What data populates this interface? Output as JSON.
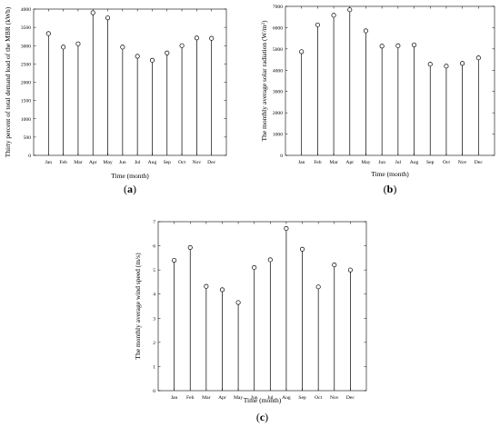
{
  "chart_data": [
    {
      "type": "stem",
      "panel_label": "a",
      "categories": [
        "Jan",
        "Feb",
        "Mar",
        "Apr",
        "May",
        "Jun",
        "Jul",
        "Aug",
        "Sep",
        "Oct",
        "Nov",
        "Dec"
      ],
      "values": [
        3330,
        2960,
        3050,
        3900,
        3760,
        2960,
        2710,
        2600,
        2800,
        3000,
        3210,
        3200
      ],
      "ylim": [
        0,
        4000
      ],
      "yticks": [
        0,
        500,
        1000,
        1500,
        2000,
        2500,
        3000,
        3500,
        4000
      ],
      "xlabel": "Time (month)",
      "ylabel": "Thirty percent of total demand load of the MBR (kWh)"
    },
    {
      "type": "stem",
      "panel_label": "b",
      "categories": [
        "Jan",
        "Feb",
        "Mar",
        "Apr",
        "May",
        "Jun",
        "Jul",
        "Aug",
        "Sep",
        "Oct",
        "Nov",
        "Dec"
      ],
      "values": [
        4870,
        6130,
        6580,
        6840,
        5850,
        5130,
        5150,
        5190,
        4280,
        4190,
        4320,
        4580
      ],
      "ylim": [
        0,
        7000
      ],
      "yticks": [
        0,
        1000,
        2000,
        3000,
        4000,
        5000,
        6000,
        7000
      ],
      "xlabel": "Time (month)",
      "ylabel": "The monthly average solar radiation (W/m",
      "ylabel_sup": "2",
      "ylabel_end": ")"
    },
    {
      "type": "stem",
      "panel_label": "c",
      "categories": [
        "Jan",
        "Feb",
        "Mar",
        "Apr",
        "May",
        "Jun",
        "Jul",
        "Aug",
        "Sep",
        "Oct",
        "Nov",
        "Dec"
      ],
      "values": [
        5.4,
        5.93,
        4.32,
        4.18,
        3.65,
        5.1,
        5.42,
        6.72,
        5.86,
        4.3,
        5.21,
        5.0
      ],
      "ylim": [
        0,
        7
      ],
      "yticks": [
        0,
        1,
        2,
        3,
        4,
        5,
        6,
        7
      ],
      "xlabel": "Time (month)",
      "ylabel": "The monthly average wind speed (m/s)"
    }
  ]
}
